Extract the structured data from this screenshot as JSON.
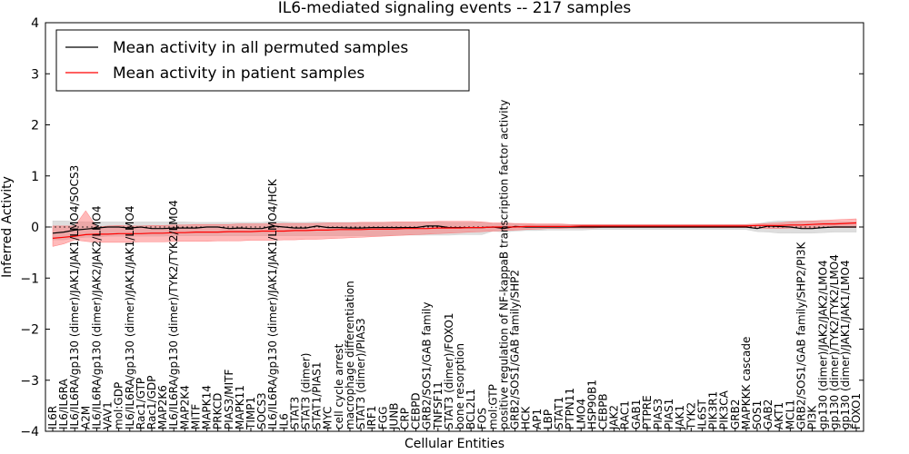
{
  "chart_data": {
    "type": "line",
    "title": "IL6-mediated signaling events -- 217 samples",
    "xlabel": "Cellular Entities",
    "ylabel": "Inferred Activity",
    "ylim": [
      -4,
      4
    ],
    "yticks": [
      -4,
      -3,
      -2,
      -1,
      0,
      1,
      2,
      3,
      4
    ],
    "legend_position": "top-left",
    "colors": {
      "permuted": "#000000",
      "patient": "#ff0000",
      "permuted_band": "#c8c8c8",
      "patient_band": "#ff6666"
    },
    "categories": [
      "IL6R",
      "IL6/IL6RA",
      "IL6/IL6RA/gp130 (dimer)/JAK1/JAK1/LMO4/SOCS3",
      "A2M",
      "IL6/IL6RA/gp130 (dimer)/JAK2/JAK2/LMO4",
      "VAV1",
      "mol:GDP",
      "IL6/IL6RA/gp130 (dimer)/JAK1/JAK1/LMO4",
      "Rac1/GTP",
      "Rac1/GDP",
      "MAP2K6",
      "IL6/IL6RA/gp130 (dimer)/TYK2/TYK2/LMO4",
      "MAP2K4",
      "MITF",
      "MAPK14",
      "PRKCD",
      "PIAS3/MITF",
      "MAPK11",
      "TIMP1",
      "SOCS3",
      "IL6/IL6RA/gp130 (dimer)/JAK1/JAK1/LMO4/HCK",
      "IL6",
      "STAT3",
      "STAT3 (dimer)",
      "STAT1/PIAS1",
      "MYC",
      "cell cycle arrest",
      "macrophage differentiation",
      "STAT3 (dimer)/PIAS3",
      "IRF1",
      "FGG",
      "JUNB",
      "CRP",
      "CEBPD",
      "GRB2/SOS1/GAB family",
      "TNFSF11",
      "STAT3 (dimer)/FOXO1",
      "bone resorption",
      "BCL2L1",
      "FOS",
      "mol:GTP",
      "positive regulation of NF-kappaB transcription factor activity",
      "GRB2/SOS1/GAB family/SHP2",
      "HCK",
      "AP1",
      "LBP",
      "STAT1",
      "PTPN11",
      "LMO4",
      "HSP90B1",
      "CEBPB",
      "JAK2",
      "RAC1",
      "GAB1",
      "PTPRE",
      "PIAS3",
      "PIAS1",
      "JAK1",
      "TYK2",
      "IL6ST",
      "PIK3R1",
      "PIK3CA",
      "GRB2",
      "MAPKKK cascade",
      "SOS1",
      "GAB2",
      "AKT1",
      "MCL1",
      "GRB2/SOS1/GAB family/SHP2/PI3K",
      "PI3K",
      "gp130 (dimer)/JAK2/JAK2/LMO4",
      "gp130 (dimer)/TYK2/TYK2/LMO4",
      "gp130 (dimer)/JAK1/JAK1/LMO4",
      "FOXO1"
    ],
    "series": [
      {
        "name": "Mean activity in all permuted samples",
        "values": [
          -0.12,
          -0.1,
          -0.06,
          -0.04,
          -0.02,
          0.0,
          0.0,
          -0.02,
          0.0,
          -0.03,
          -0.03,
          -0.02,
          -0.02,
          -0.02,
          0.0,
          0.0,
          -0.03,
          -0.02,
          -0.03,
          -0.03,
          0.02,
          0.0,
          -0.02,
          -0.02,
          0.02,
          -0.01,
          -0.01,
          -0.02,
          -0.02,
          -0.01,
          -0.01,
          -0.01,
          -0.01,
          -0.01,
          0.02,
          0.02,
          -0.01,
          -0.01,
          -0.01,
          -0.01,
          0.0,
          -0.03,
          0.01,
          0.0,
          0.0,
          0.0,
          0.0,
          0.0,
          0.0,
          0.0,
          0.0,
          0.0,
          0.0,
          0.0,
          0.0,
          0.0,
          0.0,
          0.0,
          0.0,
          0.0,
          0.0,
          0.0,
          0.0,
          0.0,
          -0.03,
          0.02,
          0.01,
          0.0,
          -0.03,
          -0.03,
          -0.01,
          0.0,
          0.0,
          0.0
        ],
        "lower": [
          -0.25,
          -0.25,
          -0.22,
          -0.2,
          -0.2,
          -0.18,
          -0.18,
          -0.18,
          -0.18,
          -0.18,
          -0.18,
          -0.17,
          -0.17,
          -0.17,
          -0.17,
          -0.17,
          -0.17,
          -0.17,
          -0.17,
          -0.17,
          -0.17,
          -0.17,
          -0.17,
          -0.17,
          -0.17,
          -0.17,
          -0.17,
          -0.17,
          -0.17,
          -0.17,
          -0.17,
          -0.16,
          -0.16,
          -0.16,
          -0.16,
          -0.16,
          -0.16,
          -0.15,
          -0.15,
          -0.15,
          -0.08,
          -0.1,
          -0.08,
          -0.07,
          -0.07,
          -0.06,
          -0.06,
          -0.06,
          -0.06,
          -0.05,
          -0.05,
          -0.05,
          -0.05,
          -0.05,
          -0.05,
          -0.05,
          -0.05,
          -0.05,
          -0.05,
          -0.05,
          -0.05,
          -0.05,
          -0.05,
          -0.05,
          -0.09,
          -0.1,
          -0.12,
          -0.12,
          -0.12,
          -0.12,
          -0.11,
          -0.1,
          -0.1,
          -0.1
        ],
        "upper": [
          0.12,
          0.12,
          0.11,
          0.1,
          0.1,
          0.1,
          0.1,
          0.1,
          0.1,
          0.1,
          0.1,
          0.1,
          0.1,
          0.09,
          0.09,
          0.09,
          0.09,
          0.09,
          0.09,
          0.09,
          0.12,
          0.1,
          0.09,
          0.09,
          0.1,
          0.09,
          0.09,
          0.09,
          0.09,
          0.09,
          0.09,
          0.09,
          0.09,
          0.09,
          0.1,
          0.1,
          0.09,
          0.09,
          0.09,
          0.09,
          0.06,
          0.07,
          0.06,
          0.05,
          0.05,
          0.05,
          0.05,
          0.05,
          0.05,
          0.05,
          0.05,
          0.05,
          0.05,
          0.05,
          0.05,
          0.05,
          0.05,
          0.05,
          0.05,
          0.05,
          0.05,
          0.05,
          0.05,
          0.05,
          0.06,
          0.1,
          0.12,
          0.12,
          0.12,
          0.12,
          0.11,
          0.1,
          0.1,
          0.1
        ]
      },
      {
        "name": "Mean activity in patient samples",
        "values": [
          -0.22,
          -0.2,
          -0.18,
          -0.15,
          -0.14,
          -0.14,
          -0.13,
          -0.13,
          -0.13,
          -0.12,
          -0.12,
          -0.11,
          -0.11,
          -0.1,
          -0.1,
          -0.1,
          -0.09,
          -0.09,
          -0.09,
          -0.08,
          -0.08,
          -0.08,
          -0.07,
          -0.07,
          -0.06,
          -0.06,
          -0.05,
          -0.05,
          -0.05,
          -0.04,
          -0.04,
          -0.04,
          -0.03,
          -0.03,
          -0.03,
          -0.02,
          -0.02,
          -0.02,
          -0.01,
          -0.01,
          0.0,
          0.0,
          0.0,
          0.01,
          0.01,
          0.01,
          0.01,
          0.01,
          0.02,
          0.02,
          0.02,
          0.02,
          0.02,
          0.02,
          0.02,
          0.02,
          0.02,
          0.02,
          0.02,
          0.02,
          0.02,
          0.02,
          0.02,
          0.02,
          0.03,
          0.03,
          0.03,
          0.04,
          0.04,
          0.05,
          0.06,
          0.06,
          0.07,
          0.08
        ],
        "lower": [
          -0.38,
          -0.33,
          -0.25,
          -0.28,
          -0.3,
          -0.3,
          -0.3,
          -0.3,
          -0.29,
          -0.29,
          -0.29,
          -0.28,
          -0.28,
          -0.28,
          -0.28,
          -0.27,
          -0.27,
          -0.27,
          -0.26,
          -0.26,
          -0.26,
          -0.25,
          -0.25,
          -0.24,
          -0.24,
          -0.23,
          -0.22,
          -0.21,
          -0.2,
          -0.19,
          -0.18,
          -0.17,
          -0.16,
          -0.15,
          -0.14,
          -0.13,
          -0.12,
          -0.11,
          -0.1,
          -0.09,
          -0.08,
          -0.07,
          -0.06,
          -0.05,
          -0.04,
          -0.03,
          -0.03,
          -0.02,
          -0.02,
          -0.02,
          -0.01,
          -0.01,
          -0.01,
          -0.01,
          -0.01,
          -0.01,
          -0.01,
          -0.01,
          -0.01,
          -0.01,
          -0.01,
          -0.01,
          -0.01,
          -0.01,
          -0.02,
          -0.03,
          -0.03,
          -0.02,
          -0.02,
          -0.02,
          -0.01,
          -0.01,
          -0.01,
          -0.01
        ],
        "upper": [
          0.02,
          0.02,
          0.02,
          0.32,
          0.0,
          0.02,
          0.03,
          0.02,
          0.02,
          0.03,
          0.03,
          0.04,
          0.04,
          0.05,
          0.05,
          0.05,
          0.05,
          0.06,
          0.06,
          0.06,
          0.06,
          0.07,
          0.07,
          0.07,
          0.07,
          0.08,
          0.08,
          0.08,
          0.09,
          0.09,
          0.09,
          0.1,
          0.1,
          0.1,
          0.1,
          0.11,
          0.11,
          0.11,
          0.11,
          0.1,
          0.08,
          0.08,
          0.07,
          0.07,
          0.06,
          0.06,
          0.06,
          0.05,
          0.05,
          0.05,
          0.05,
          0.05,
          0.05,
          0.05,
          0.05,
          0.05,
          0.05,
          0.05,
          0.05,
          0.05,
          0.05,
          0.05,
          0.05,
          0.05,
          0.06,
          0.07,
          0.08,
          0.1,
          0.11,
          0.12,
          0.13,
          0.14,
          0.15,
          0.16
        ]
      }
    ]
  }
}
